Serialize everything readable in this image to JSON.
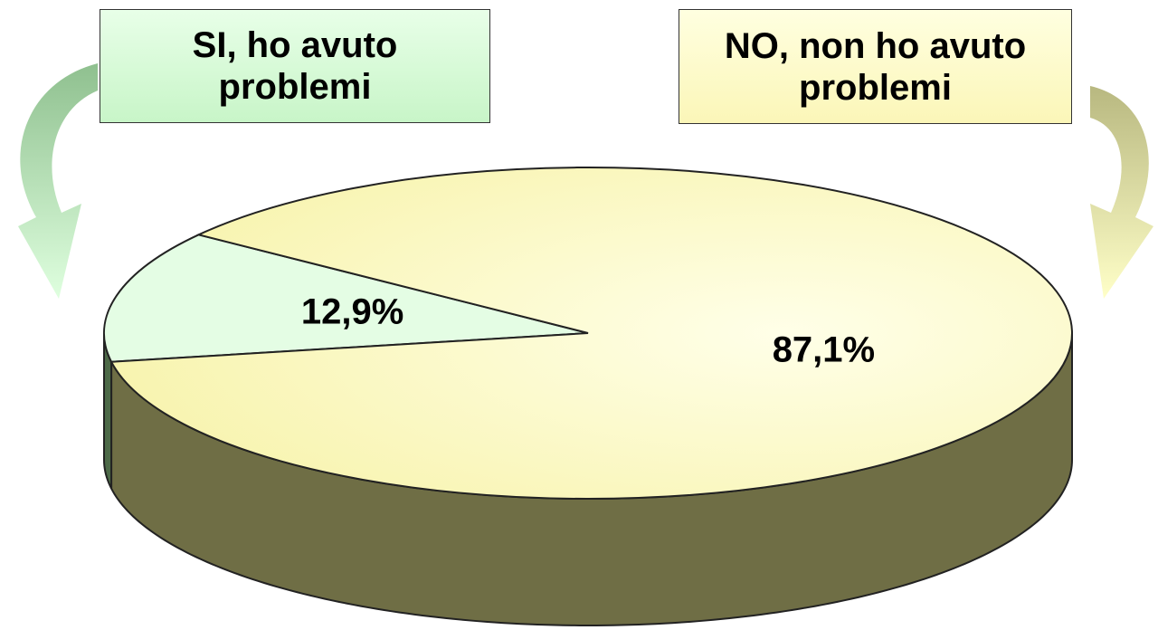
{
  "chart_data": {
    "type": "pie",
    "categories": [
      "SI, ho avuto problemi",
      "NO, non ho avuto problemi"
    ],
    "values": [
      12.9,
      87.1
    ],
    "value_labels": [
      "12,9%",
      "87,1%"
    ],
    "colors": [
      "#e4fde4",
      "#ffffd2"
    ]
  }
}
